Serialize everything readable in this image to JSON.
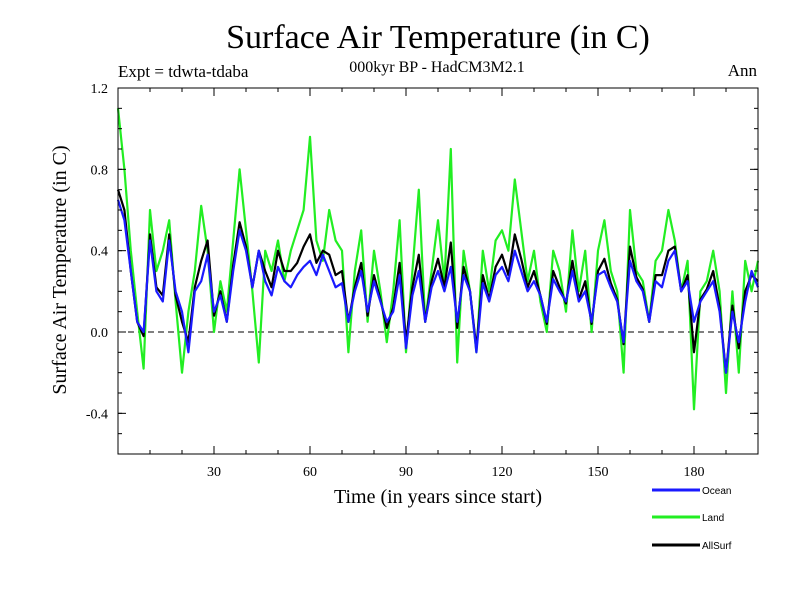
{
  "chart_data": {
    "type": "line",
    "title": "Surface Air Temperature (in C)",
    "subtitle": "000kyr BP - HadCM3M2.1",
    "experiment_label": "Expt = tdwta-tdaba",
    "season_label": "Ann",
    "xlabel": "Time (in years since start)",
    "ylabel": "Surface Air Temperature (in C)",
    "xlim": [
      0,
      200
    ],
    "ylim": [
      -0.6,
      1.2
    ],
    "x_ticks": [
      30,
      60,
      90,
      120,
      150,
      180
    ],
    "y_ticks": [
      -0.4,
      0.0,
      0.4,
      0.8,
      1.2
    ],
    "y_tick_labels": [
      "-0.4",
      "0.0",
      "0.4",
      "0.8",
      "1.2"
    ],
    "reference_line": 0.0,
    "legend_position": "bottom-right",
    "series": [
      {
        "name": "Ocean",
        "color": "#1a1aff",
        "x": [
          0,
          2,
          4,
          6,
          8,
          10,
          12,
          14,
          16,
          18,
          20,
          22,
          24,
          26,
          28,
          30,
          32,
          34,
          36,
          38,
          40,
          42,
          44,
          46,
          48,
          50,
          52,
          54,
          56,
          58,
          60,
          62,
          64,
          66,
          68,
          70,
          72,
          74,
          76,
          78,
          80,
          82,
          84,
          86,
          88,
          90,
          92,
          94,
          96,
          98,
          100,
          102,
          104,
          106,
          108,
          110,
          112,
          114,
          116,
          118,
          120,
          122,
          124,
          126,
          128,
          130,
          132,
          134,
          136,
          138,
          140,
          142,
          144,
          146,
          148,
          150,
          152,
          154,
          156,
          158,
          160,
          162,
          164,
          166,
          168,
          170,
          172,
          174,
          176,
          178,
          180,
          182,
          184,
          186,
          188,
          190,
          192,
          194,
          196,
          198,
          200
        ],
        "values": [
          0.65,
          0.55,
          0.3,
          0.05,
          0.0,
          0.45,
          0.2,
          0.15,
          0.45,
          0.2,
          0.1,
          -0.1,
          0.2,
          0.25,
          0.38,
          0.1,
          0.18,
          0.05,
          0.3,
          0.5,
          0.4,
          0.22,
          0.4,
          0.25,
          0.18,
          0.32,
          0.25,
          0.22,
          0.28,
          0.32,
          0.35,
          0.28,
          0.38,
          0.3,
          0.22,
          0.24,
          0.05,
          0.2,
          0.3,
          0.1,
          0.25,
          0.15,
          0.05,
          0.1,
          0.28,
          -0.08,
          0.18,
          0.3,
          0.05,
          0.22,
          0.3,
          0.2,
          0.32,
          0.05,
          0.28,
          0.2,
          -0.1,
          0.24,
          0.15,
          0.28,
          0.32,
          0.25,
          0.4,
          0.3,
          0.2,
          0.25,
          0.18,
          0.05,
          0.26,
          0.2,
          0.15,
          0.3,
          0.15,
          0.2,
          0.05,
          0.28,
          0.3,
          0.22,
          0.15,
          -0.05,
          0.35,
          0.25,
          0.2,
          0.05,
          0.25,
          0.22,
          0.35,
          0.4,
          0.2,
          0.25,
          0.05,
          0.15,
          0.2,
          0.25,
          0.1,
          -0.2,
          0.1,
          -0.05,
          0.15,
          0.3,
          0.22
        ]
      },
      {
        "name": "Land",
        "color": "#22ee22",
        "x": [
          0,
          2,
          4,
          6,
          8,
          10,
          12,
          14,
          16,
          18,
          20,
          22,
          24,
          26,
          28,
          30,
          32,
          34,
          36,
          38,
          40,
          42,
          44,
          46,
          48,
          50,
          52,
          54,
          56,
          58,
          60,
          62,
          64,
          66,
          68,
          70,
          72,
          74,
          76,
          78,
          80,
          82,
          84,
          86,
          88,
          90,
          92,
          94,
          96,
          98,
          100,
          102,
          104,
          106,
          108,
          110,
          112,
          114,
          116,
          118,
          120,
          122,
          124,
          126,
          128,
          130,
          132,
          134,
          136,
          138,
          140,
          142,
          144,
          146,
          148,
          150,
          152,
          154,
          156,
          158,
          160,
          162,
          164,
          166,
          168,
          170,
          172,
          174,
          176,
          178,
          180,
          182,
          184,
          186,
          188,
          190,
          192,
          194,
          196,
          198,
          200
        ],
        "values": [
          1.1,
          0.8,
          0.4,
          0.1,
          -0.18,
          0.6,
          0.3,
          0.4,
          0.55,
          0.15,
          -0.2,
          0.1,
          0.3,
          0.62,
          0.4,
          0.0,
          0.25,
          0.1,
          0.45,
          0.8,
          0.5,
          0.2,
          -0.15,
          0.4,
          0.3,
          0.45,
          0.25,
          0.4,
          0.5,
          0.6,
          0.96,
          0.45,
          0.35,
          0.6,
          0.45,
          0.4,
          -0.1,
          0.3,
          0.5,
          0.05,
          0.4,
          0.2,
          -0.05,
          0.2,
          0.55,
          -0.1,
          0.3,
          0.7,
          0.05,
          0.3,
          0.55,
          0.25,
          0.9,
          -0.15,
          0.4,
          0.2,
          -0.1,
          0.4,
          0.2,
          0.45,
          0.5,
          0.4,
          0.75,
          0.5,
          0.25,
          0.4,
          0.15,
          0.0,
          0.4,
          0.3,
          0.1,
          0.5,
          0.2,
          0.4,
          0.0,
          0.4,
          0.55,
          0.3,
          0.2,
          -0.2,
          0.6,
          0.3,
          0.25,
          0.05,
          0.35,
          0.4,
          0.6,
          0.45,
          0.2,
          0.35,
          -0.38,
          0.2,
          0.25,
          0.4,
          0.2,
          -0.3,
          0.2,
          -0.2,
          0.35,
          0.2,
          0.35
        ]
      },
      {
        "name": "AllSurf",
        "color": "#000000",
        "x": [
          0,
          2,
          4,
          6,
          8,
          10,
          12,
          14,
          16,
          18,
          20,
          22,
          24,
          26,
          28,
          30,
          32,
          34,
          36,
          38,
          40,
          42,
          44,
          46,
          48,
          50,
          52,
          54,
          56,
          58,
          60,
          62,
          64,
          66,
          68,
          70,
          72,
          74,
          76,
          78,
          80,
          82,
          84,
          86,
          88,
          90,
          92,
          94,
          96,
          98,
          100,
          102,
          104,
          106,
          108,
          110,
          112,
          114,
          116,
          118,
          120,
          122,
          124,
          126,
          128,
          130,
          132,
          134,
          136,
          138,
          140,
          142,
          144,
          146,
          148,
          150,
          152,
          154,
          156,
          158,
          160,
          162,
          164,
          166,
          168,
          170,
          172,
          174,
          176,
          178,
          180,
          182,
          184,
          186,
          188,
          190,
          192,
          194,
          196,
          198,
          200
        ],
        "values": [
          0.7,
          0.6,
          0.3,
          0.05,
          -0.02,
          0.48,
          0.22,
          0.18,
          0.48,
          0.18,
          0.05,
          -0.05,
          0.22,
          0.35,
          0.45,
          0.08,
          0.2,
          0.05,
          0.33,
          0.54,
          0.42,
          0.22,
          0.4,
          0.3,
          0.22,
          0.4,
          0.3,
          0.3,
          0.34,
          0.42,
          0.48,
          0.34,
          0.4,
          0.38,
          0.28,
          0.3,
          0.05,
          0.22,
          0.34,
          0.08,
          0.28,
          0.16,
          0.02,
          0.12,
          0.34,
          -0.05,
          0.22,
          0.38,
          0.05,
          0.25,
          0.36,
          0.22,
          0.44,
          0.02,
          0.32,
          0.2,
          -0.08,
          0.28,
          0.16,
          0.32,
          0.38,
          0.28,
          0.48,
          0.36,
          0.22,
          0.3,
          0.18,
          0.04,
          0.3,
          0.22,
          0.14,
          0.35,
          0.16,
          0.25,
          0.04,
          0.3,
          0.36,
          0.24,
          0.16,
          -0.06,
          0.42,
          0.27,
          0.21,
          0.05,
          0.28,
          0.28,
          0.4,
          0.42,
          0.2,
          0.28,
          -0.1,
          0.16,
          0.21,
          0.3,
          0.12,
          -0.2,
          0.13,
          -0.08,
          0.2,
          0.28,
          0.25
        ]
      }
    ]
  }
}
